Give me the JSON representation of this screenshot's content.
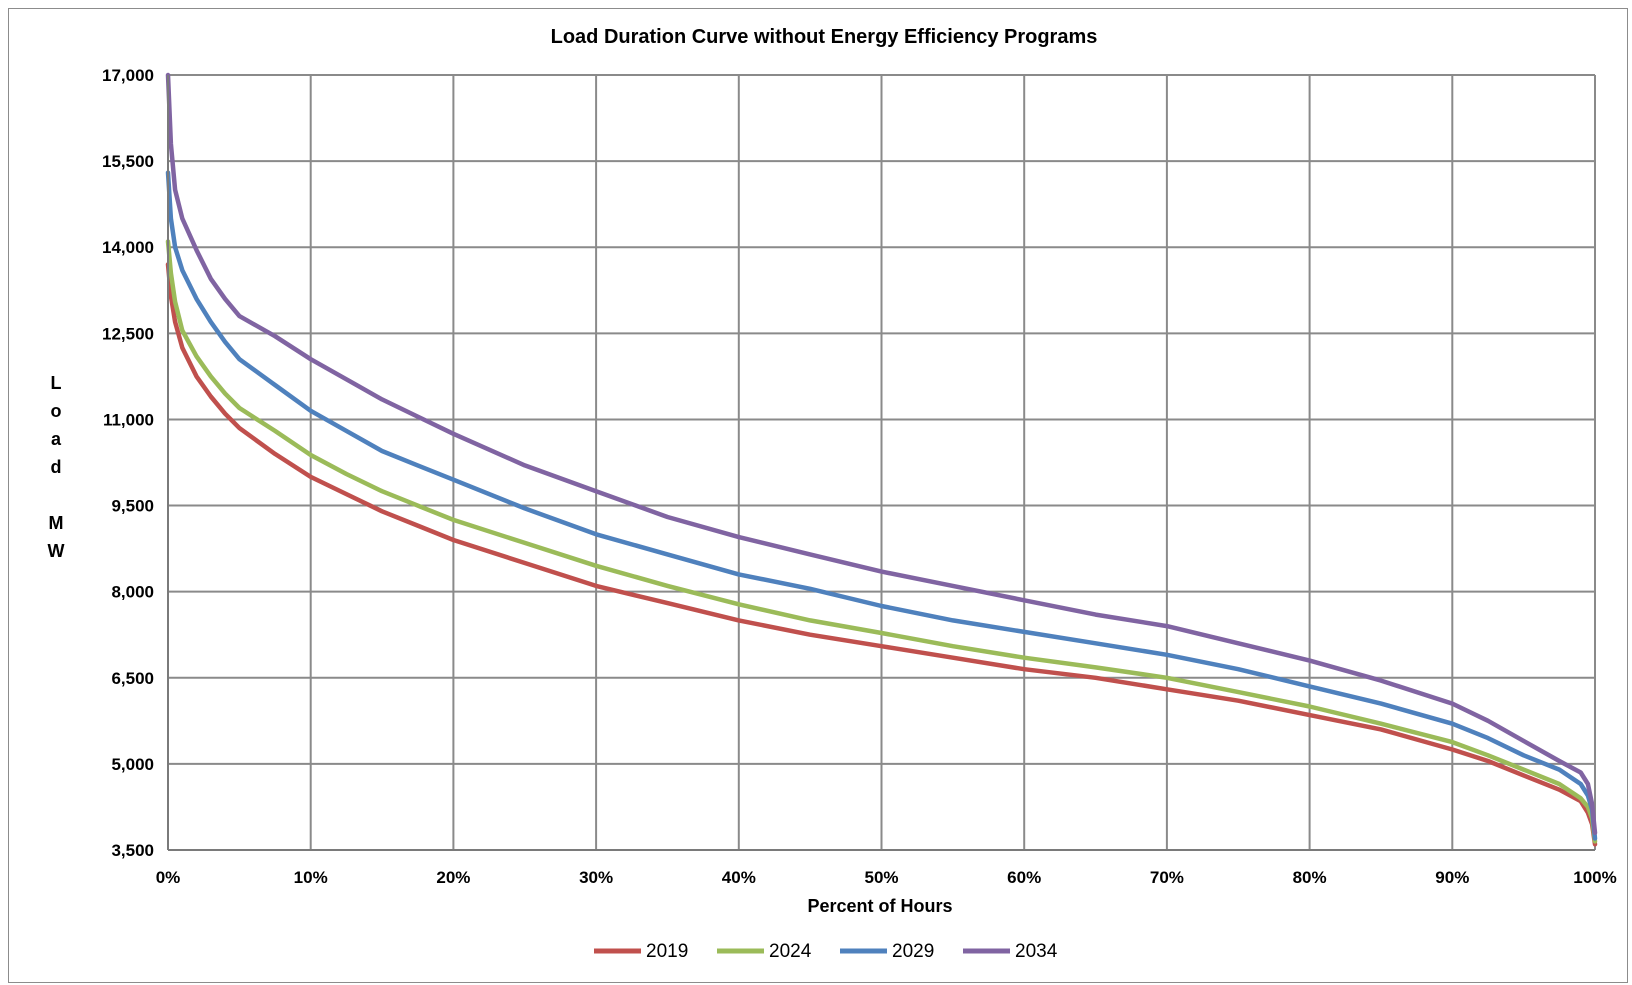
{
  "chart_data": {
    "type": "line",
    "title": "Load Duration Curve without Energy Efficiency Programs",
    "xlabel": "Percent of Hours",
    "ylabel": "Load MW",
    "ylabel_lines": [
      "L",
      "o",
      "a",
      "d",
      "",
      "M",
      "W"
    ],
    "xlim": [
      0,
      100
    ],
    "ylim": [
      3500,
      17000
    ],
    "x_ticks": [
      0,
      10,
      20,
      30,
      40,
      50,
      60,
      70,
      80,
      90,
      100
    ],
    "x_tick_labels": [
      "0%",
      "10%",
      "20%",
      "30%",
      "40%",
      "50%",
      "60%",
      "70%",
      "80%",
      "90%",
      "100%"
    ],
    "y_ticks": [
      3500,
      5000,
      6500,
      8000,
      9500,
      11000,
      12500,
      14000,
      15500,
      17000
    ],
    "y_tick_labels": [
      "3,500",
      "5,000",
      "6,500",
      "8,000",
      "9,500",
      "11,000",
      "12,500",
      "14,000",
      "15,500",
      "17,000"
    ],
    "grid": true,
    "legend_position": "bottom",
    "x": [
      0,
      0.2,
      0.5,
      1,
      2,
      3,
      4,
      5,
      7.5,
      10,
      12.5,
      15,
      17.5,
      20,
      25,
      30,
      35,
      40,
      45,
      50,
      55,
      60,
      65,
      70,
      75,
      80,
      85,
      90,
      92.5,
      95,
      97.5,
      99,
      99.5,
      99.8,
      100
    ],
    "series": [
      {
        "name": "2019",
        "color": "#c0504d",
        "values": [
          13700,
          13150,
          12700,
          12250,
          11750,
          11400,
          11100,
          10850,
          10400,
          10000,
          9700,
          9400,
          9150,
          8900,
          8500,
          8100,
          7800,
          7500,
          7250,
          7050,
          6850,
          6650,
          6500,
          6300,
          6100,
          5850,
          5600,
          5250,
          5050,
          4800,
          4550,
          4350,
          4150,
          3950,
          3600
        ]
      },
      {
        "name": "2024",
        "color": "#9bbb59",
        "values": [
          14100,
          13550,
          13050,
          12550,
          12100,
          11750,
          11450,
          11200,
          10800,
          10380,
          10050,
          9750,
          9500,
          9250,
          8850,
          8450,
          8100,
          7780,
          7500,
          7280,
          7050,
          6850,
          6680,
          6500,
          6250,
          6000,
          5700,
          5380,
          5150,
          4900,
          4650,
          4400,
          4250,
          4050,
          3650
        ]
      },
      {
        "name": "2029",
        "color": "#4f81bd",
        "values": [
          15300,
          14500,
          14000,
          13600,
          13100,
          12700,
          12350,
          12050,
          11600,
          11150,
          10800,
          10450,
          10200,
          9950,
          9450,
          9000,
          8650,
          8300,
          8050,
          7750,
          7500,
          7300,
          7100,
          6900,
          6650,
          6350,
          6050,
          5700,
          5450,
          5150,
          4900,
          4650,
          4450,
          4200,
          3700
        ]
      },
      {
        "name": "2034",
        "color": "#8064a2",
        "values": [
          17000,
          15800,
          15000,
          14500,
          13950,
          13450,
          13100,
          12800,
          12450,
          12050,
          11700,
          11350,
          11050,
          10750,
          10200,
          9750,
          9300,
          8950,
          8650,
          8350,
          8100,
          7850,
          7600,
          7400,
          7100,
          6800,
          6450,
          6050,
          5750,
          5400,
          5050,
          4850,
          4650,
          4300,
          3800
        ]
      }
    ]
  }
}
